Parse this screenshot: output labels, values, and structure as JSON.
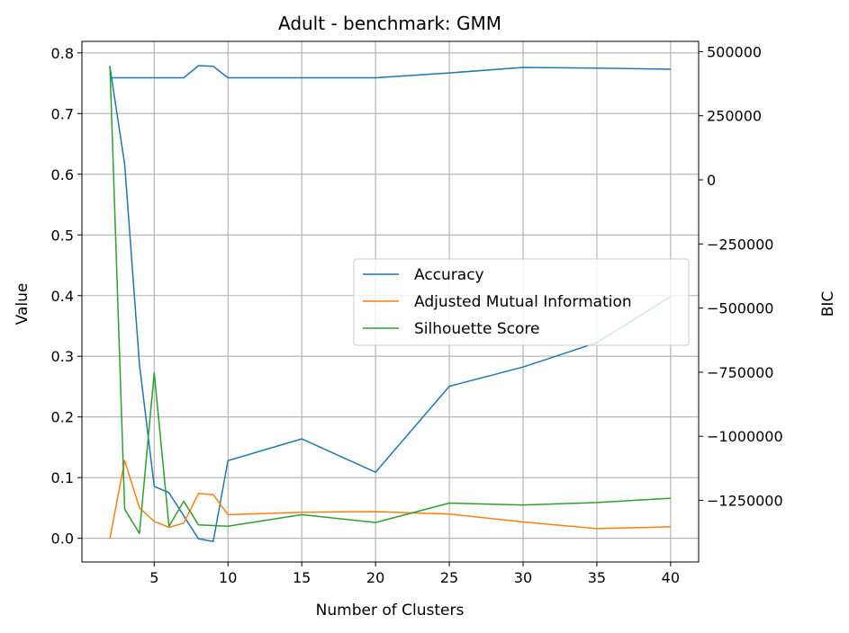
{
  "chart_data": {
    "type": "line",
    "title": "Adult - benchmark: GMM",
    "xlabel": "Number of Clusters",
    "ylabel": "Value",
    "y2label": "BIC",
    "xlim": [
      0.1,
      41.9
    ],
    "ylim": [
      -0.039,
      0.819
    ],
    "y2lim": [
      -1490000,
      540000
    ],
    "xticks": [
      5,
      10,
      15,
      20,
      25,
      30,
      35,
      40
    ],
    "yticks": [
      0.0,
      0.1,
      0.2,
      0.3,
      0.4,
      0.5,
      0.6,
      0.7,
      0.8
    ],
    "y2ticks": [
      500000,
      250000,
      0,
      -250000,
      -500000,
      -750000,
      -1000000,
      -1250000
    ],
    "y2ticklabels": [
      "500000",
      "250000",
      "0",
      "−250000",
      "−500000",
      "−750000",
      "−1000000",
      "−1250000"
    ],
    "grid": true,
    "legend_position": "center-right",
    "x": [
      2,
      3,
      4,
      5,
      6,
      7,
      8,
      9,
      10,
      15,
      20,
      25,
      30,
      35,
      40
    ],
    "series": [
      {
        "name": "Accuracy",
        "color": "#1f77b4",
        "values": [
          0.759,
          0.759,
          0.759,
          0.759,
          0.759,
          0.759,
          0.779,
          0.778,
          0.759,
          0.759,
          0.759,
          0.767,
          0.776,
          0.775,
          0.773
        ]
      },
      {
        "name": "Adjusted Mutual Information",
        "color": "#ff7f0e",
        "values": [
          0.0,
          0.128,
          0.05,
          0.028,
          0.018,
          0.025,
          0.074,
          0.072,
          0.039,
          0.043,
          0.044,
          0.04,
          0.027,
          0.016,
          0.019
        ]
      },
      {
        "name": "Silhouette Score",
        "color": "#2ca02c",
        "values": [
          0.779,
          0.048,
          0.008,
          0.273,
          0.02,
          0.061,
          0.022,
          0.021,
          0.02,
          0.039,
          0.026,
          0.058,
          0.055,
          0.059,
          0.066
        ]
      },
      {
        "name": "",
        "axis": "right",
        "color": "#1f77b4",
        "values": [
          440000,
          60000,
          -720000,
          -1195000,
          -1220000,
          -1310000,
          -1400000,
          -1410000,
          -1095000,
          -1010000,
          -1140000,
          -805000,
          -730000,
          -635000,
          -455000
        ]
      }
    ]
  }
}
